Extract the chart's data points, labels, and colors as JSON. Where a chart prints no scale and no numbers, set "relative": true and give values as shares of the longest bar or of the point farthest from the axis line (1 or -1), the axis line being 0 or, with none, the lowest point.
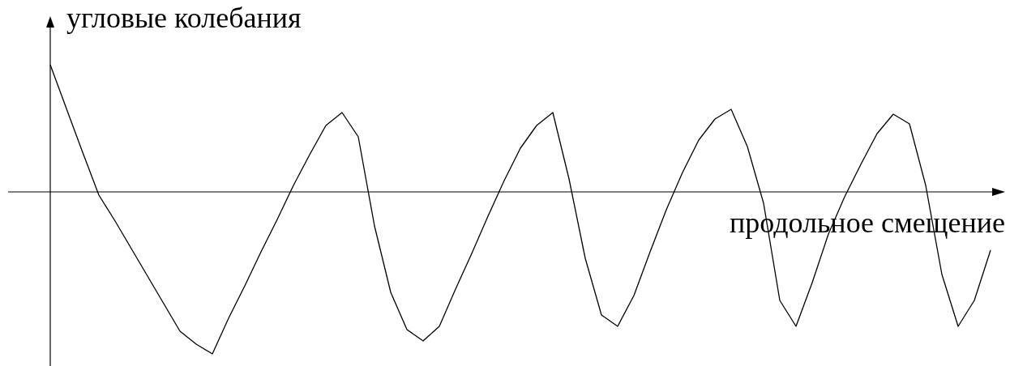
{
  "chart_data": {
    "type": "line",
    "relative": true,
    "xlabel": "продольное смещение",
    "ylabel": "угловые колебания",
    "color": "#000000",
    "categories": [
      null,
      null,
      null,
      null,
      null,
      null,
      null,
      null,
      null,
      null,
      null,
      null,
      null,
      null,
      null,
      null,
      null,
      null,
      null,
      null,
      null,
      null,
      null,
      null,
      null,
      null,
      null,
      null,
      null,
      null,
      null,
      null,
      null,
      null,
      null,
      null,
      null,
      null,
      null,
      null,
      null,
      null,
      null,
      null,
      null,
      null,
      null,
      null,
      null,
      null,
      null,
      null,
      null,
      null,
      null,
      null,
      null,
      null,
      null
    ],
    "values": [
      0.785,
      0.514,
      0.244,
      -0.02,
      -0.18,
      -0.35,
      -0.52,
      -0.69,
      -0.86,
      -0.94,
      -1,
      -0.78,
      -0.58,
      -0.37,
      -0.17,
      0.04,
      0.23,
      0.41,
      0.49,
      0.34,
      -0.21,
      -0.62,
      -0.85,
      -0.92,
      -0.83,
      -0.6,
      -0.38,
      -0.15,
      0.07,
      0.27,
      0.41,
      0.49,
      0.08,
      -0.41,
      -0.76,
      -0.83,
      -0.64,
      -0.37,
      -0.11,
      0.12,
      0.32,
      0.45,
      0.51,
      0.28,
      -0.07,
      -0.67,
      -0.83,
      -0.56,
      -0.26,
      -0.03,
      0.17,
      0.36,
      0.48,
      0.42,
      0.04,
      -0.51,
      -0.83,
      -0.67,
      -0.36
    ]
  }
}
